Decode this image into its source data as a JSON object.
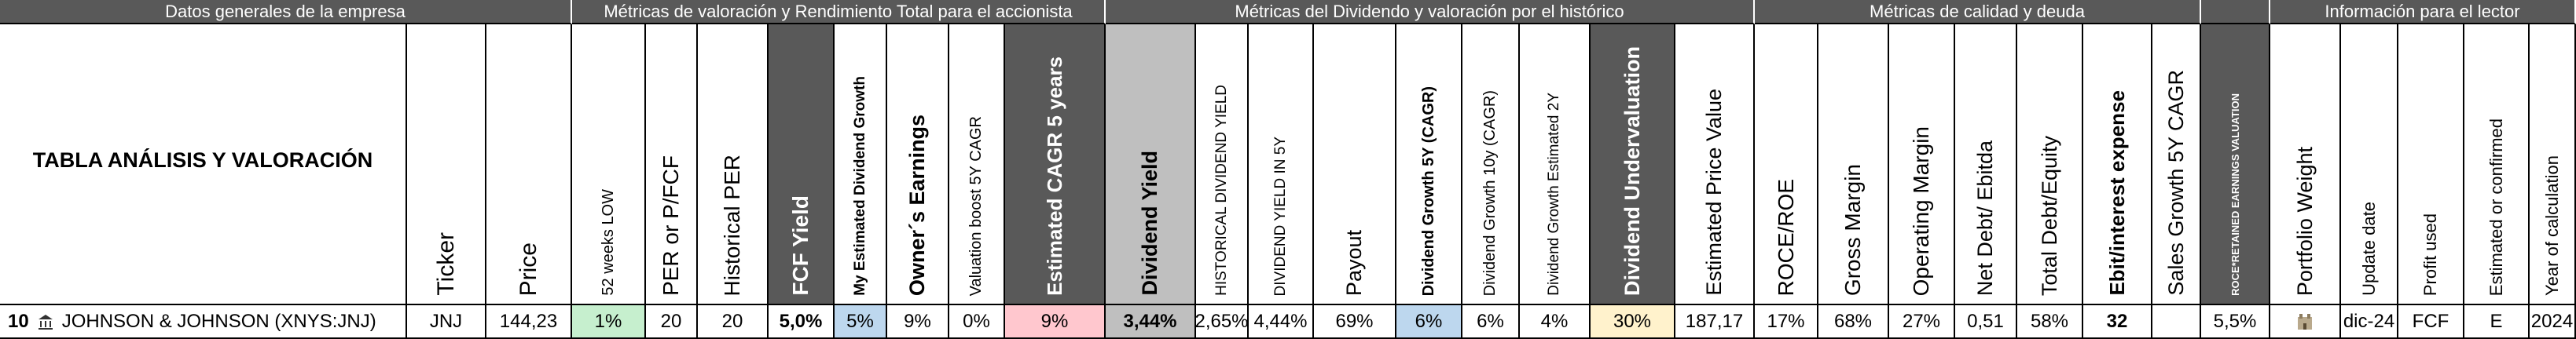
{
  "title": "TABLA ANÁLISIS Y VALORACIÓN",
  "groups": [
    "Datos generales de la empresa",
    "Métricas de valoración y Rendimiento Total para el accionista",
    "Métricas del Dividendo y valoración por el histórico",
    "Métricas de calidad y deuda",
    "Información para el lector"
  ],
  "columns": [
    "Ticker",
    "Price",
    "52 weeks LOW",
    "PER or P/FCF",
    "Historical PER",
    "FCF Yield",
    "My Estimated Dividend Growth",
    "Owner´s Earnings",
    "Valuation boost 5Y CAGR",
    "Estimated CAGR 5 years",
    "Dividend Yield",
    "HISTORICAL DIVIDEND YIELD",
    "DIVIDEND YIELD IN 5Y",
    "Payout",
    "Dividend Growth 5Y (CAGR)",
    "Dividend Growth 10y (CAGR)",
    "Dividend Growth Estimated 2Y",
    "Dividend Undervaluation",
    "Estimated Price Value",
    "ROCE/ROE",
    "Gross Margin",
    "Operating Margin",
    "Net Debt/ Ebitda",
    "Total Debt/Equity",
    "Ebit/interest expense",
    "Sales Growth 5Y CAGR",
    "ROCE*RETAINED EARNINGS VALUATION",
    "Portfolio Weight",
    "Update date",
    "Profit used",
    "Estimated or confirmed",
    "Year of calculation"
  ],
  "row": {
    "rank": "10",
    "company": "JOHNSON & JOHNSON (XNYS:JNJ)",
    "cells": [
      "JNJ",
      "144,23",
      "1%",
      "20",
      "20",
      "5,0%",
      "5%",
      "9%",
      "0%",
      "9%",
      "3,44%",
      "2,65%",
      "4,44%",
      "69%",
      "6%",
      "6%",
      "4%",
      "30%",
      "187,17",
      "17%",
      "68%",
      "27%",
      "0,51",
      "58%",
      "32",
      null,
      "5,5%",
      null,
      "dic-24",
      "FCF",
      "E",
      "2024"
    ]
  }
}
